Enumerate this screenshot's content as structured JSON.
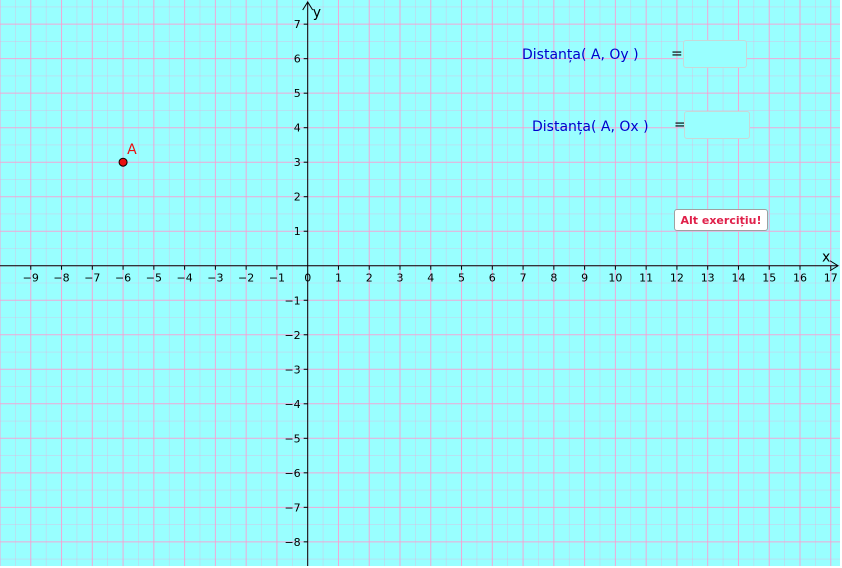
{
  "graph": {
    "x_range": [
      -10,
      17.3
    ],
    "y_range": [
      -8.7,
      7.7
    ],
    "x_axis_label": "x",
    "y_axis_label": "y",
    "x_ticks": [
      -9,
      -8,
      -7,
      -6,
      -5,
      -4,
      -3,
      -2,
      -1,
      0,
      1,
      2,
      3,
      4,
      5,
      6,
      7,
      8,
      9,
      10,
      11,
      12,
      13,
      14,
      15,
      16,
      17
    ],
    "y_ticks": [
      -8,
      -7,
      -6,
      -5,
      -4,
      -3,
      -2,
      -1,
      1,
      2,
      3,
      4,
      5,
      6,
      7
    ],
    "background_color": "#99ffff",
    "grid_color": "#ff9ad0",
    "point": {
      "label": "A",
      "x": -6,
      "y": 3,
      "color": "#e81010"
    }
  },
  "questions": [
    {
      "label": "Distanța( A, Oy )",
      "equals": "= ?",
      "answer": ""
    },
    {
      "label": "Distanța( A, Ox )",
      "equals": "= ?",
      "answer": ""
    }
  ],
  "button": {
    "label": "Alt exercițiu!",
    "color": "#e0204a"
  }
}
